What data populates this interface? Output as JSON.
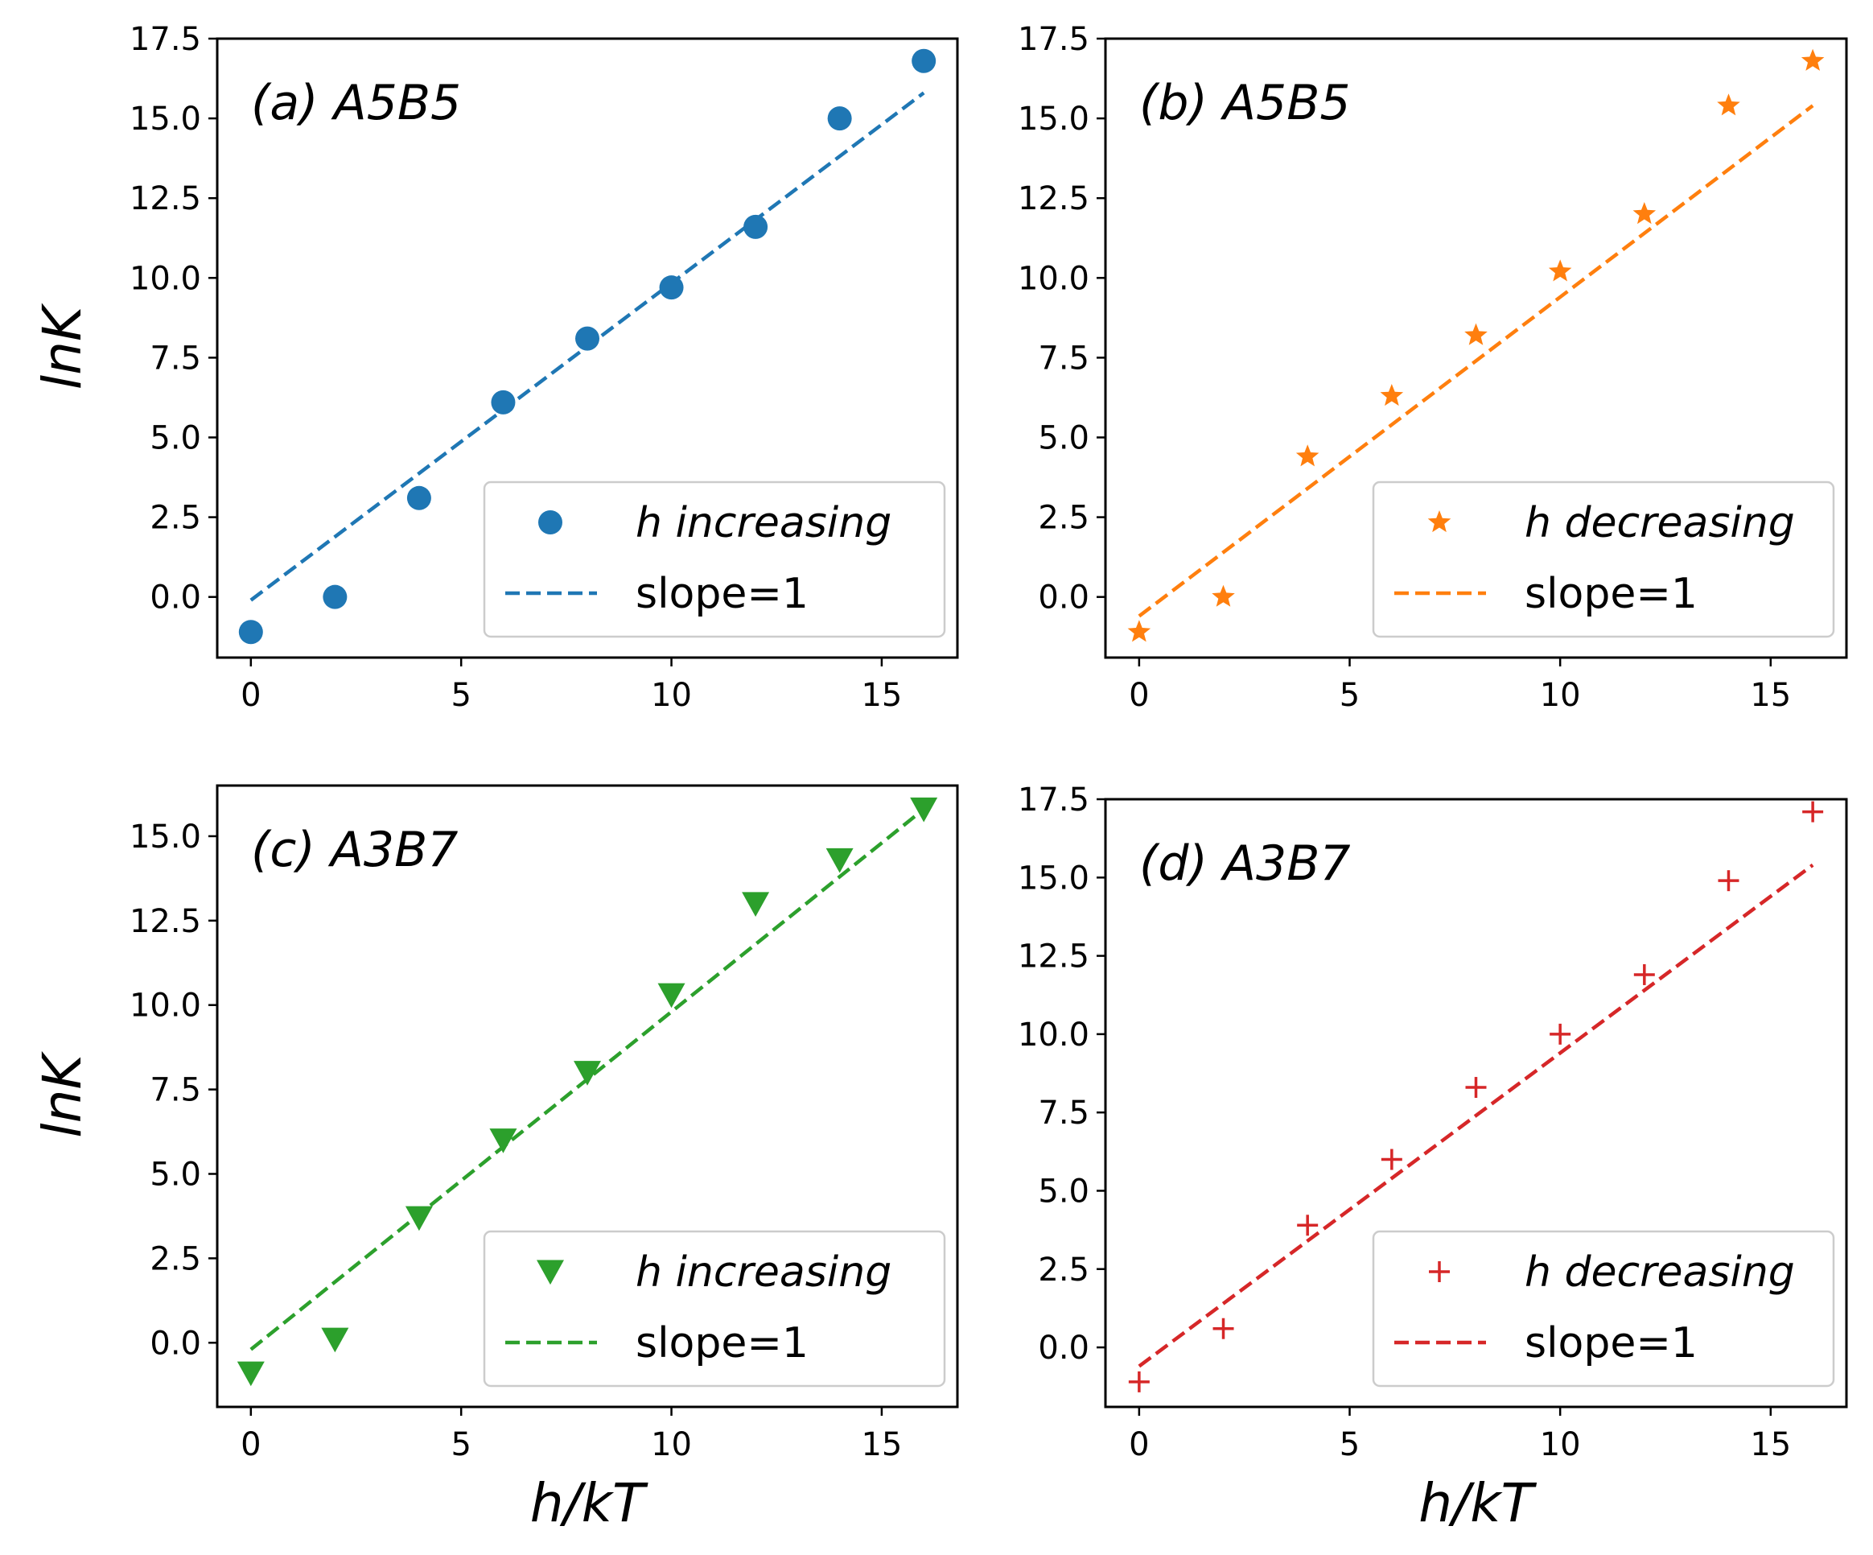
{
  "ylabel": "lnK",
  "xlabel": "h/kT",
  "chart_data": [
    {
      "id": "a",
      "type": "scatter",
      "panel_prefix": "(a) ",
      "title": "A5B5",
      "marker": "circle",
      "color": "#1f77b4",
      "x": [
        0,
        2,
        4,
        6,
        8,
        10,
        12,
        14,
        16
      ],
      "y": [
        -1.1,
        0.0,
        3.1,
        6.1,
        8.1,
        9.7,
        11.6,
        15.0,
        16.8
      ],
      "fit": {
        "label": "slope=1",
        "x": [
          0,
          16
        ],
        "y": [
          -0.1,
          15.8
        ]
      },
      "xlim": [
        -0.8,
        16.8
      ],
      "ylim": [
        -1.9,
        17.5
      ],
      "xticks": [
        0,
        5,
        10,
        15
      ],
      "yticks": [
        0.0,
        2.5,
        5.0,
        7.5,
        10.0,
        12.5,
        15.0,
        17.5
      ],
      "ytick_labels": [
        "0.0",
        "2.5",
        "5.0",
        "7.5",
        "10.0",
        "12.5",
        "15.0",
        "17.5"
      ],
      "legend": {
        "series_label": "h increasing",
        "fit_label": "slope=1",
        "position": "lower right"
      }
    },
    {
      "id": "b",
      "type": "scatter",
      "panel_prefix": "(b) ",
      "title": "A5B5",
      "marker": "star",
      "color": "#ff7f0e",
      "x": [
        0,
        2,
        4,
        6,
        8,
        10,
        12,
        14,
        16
      ],
      "y": [
        -1.1,
        0.0,
        4.4,
        6.3,
        8.2,
        10.2,
        12.0,
        15.4,
        16.8
      ],
      "fit": {
        "label": "slope=1",
        "x": [
          0,
          16
        ],
        "y": [
          -0.6,
          15.4
        ]
      },
      "xlim": [
        -0.8,
        16.8
      ],
      "ylim": [
        -1.9,
        17.5
      ],
      "xticks": [
        0,
        5,
        10,
        15
      ],
      "yticks": [
        0.0,
        2.5,
        5.0,
        7.5,
        10.0,
        12.5,
        15.0,
        17.5
      ],
      "ytick_labels": [
        "0.0",
        "2.5",
        "5.0",
        "7.5",
        "10.0",
        "12.5",
        "15.0",
        "17.5"
      ],
      "legend": {
        "series_label": "h decreasing",
        "fit_label": "slope=1",
        "position": "lower right"
      }
    },
    {
      "id": "c",
      "type": "scatter",
      "panel_prefix": "(c) ",
      "title": "A3B7",
      "marker": "triangle-down",
      "color": "#2ca02c",
      "x": [
        0,
        2,
        4,
        6,
        8,
        10,
        12,
        14,
        16
      ],
      "y": [
        -0.9,
        0.1,
        3.7,
        6.0,
        8.0,
        10.3,
        13.0,
        14.3,
        15.8
      ],
      "fit": {
        "label": "slope=1",
        "x": [
          0,
          16
        ],
        "y": [
          -0.2,
          15.8
        ]
      },
      "xlim": [
        -0.8,
        16.8
      ],
      "ylim": [
        -1.9,
        16.5
      ],
      "xticks": [
        0,
        5,
        10,
        15
      ],
      "yticks": [
        0.0,
        2.5,
        5.0,
        7.5,
        10.0,
        12.5,
        15.0
      ],
      "ytick_labels": [
        "0.0",
        "2.5",
        "5.0",
        "7.5",
        "10.0",
        "12.5",
        "15.0"
      ],
      "legend": {
        "series_label": "h increasing",
        "fit_label": "slope=1",
        "position": "lower right"
      }
    },
    {
      "id": "d",
      "type": "scatter",
      "panel_prefix": "(d) ",
      "title": "A3B7",
      "marker": "plus",
      "color": "#d62728",
      "x": [
        0,
        2,
        4,
        6,
        8,
        10,
        12,
        14,
        16
      ],
      "y": [
        -1.1,
        0.6,
        3.9,
        6.0,
        8.3,
        10.0,
        11.9,
        14.9,
        17.1
      ],
      "fit": {
        "label": "slope=1",
        "x": [
          0,
          16
        ],
        "y": [
          -0.6,
          15.4
        ]
      },
      "xlim": [
        -0.8,
        16.8
      ],
      "ylim": [
        -1.9,
        17.5
      ],
      "xticks": [
        0,
        5,
        10,
        15
      ],
      "yticks": [
        0.0,
        2.5,
        5.0,
        7.5,
        10.0,
        12.5,
        15.0,
        17.5
      ],
      "ytick_labels": [
        "0.0",
        "2.5",
        "5.0",
        "7.5",
        "10.0",
        "12.5",
        "15.0",
        "17.5"
      ],
      "legend": {
        "series_label": "h decreasing",
        "fit_label": "slope=1",
        "position": "lower right"
      }
    }
  ]
}
